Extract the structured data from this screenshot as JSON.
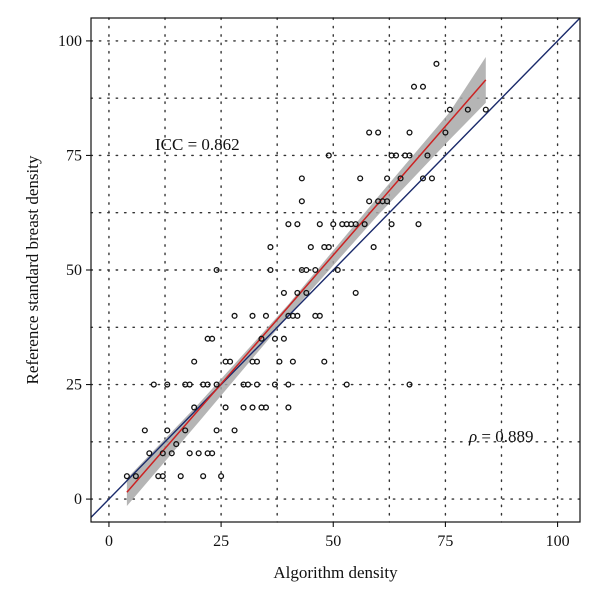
{
  "chart_data": {
    "type": "scatter",
    "title": "",
    "xlabel": "Algorithm density",
    "ylabel": "Reference standard breast density",
    "xlim": [
      -4,
      105
    ],
    "ylim": [
      -5,
      105
    ],
    "x_ticks": [
      0,
      25,
      50,
      75,
      100
    ],
    "y_ticks": [
      0,
      25,
      50,
      75,
      100
    ],
    "x_tick_labels": [
      "0",
      "25",
      "50",
      "75",
      "100"
    ],
    "y_tick_labels": [
      "0",
      "25",
      "50",
      "75",
      "100"
    ],
    "grid": "dotted, every 12.5 units",
    "annotations": {
      "icc": "ICC = 0.862",
      "rho_symbol": "ρ",
      "rho_value": " = 0.889"
    },
    "identity_line": {
      "color": "#1a2a6b",
      "from": [
        -4,
        -4
      ],
      "to": [
        105,
        105
      ]
    },
    "regression_line": {
      "color": "#cc2222",
      "from": [
        4,
        1.5
      ],
      "to": [
        84,
        91.5
      ]
    },
    "confidence_band": {
      "color": "#a8a8a8",
      "x": [
        4,
        20,
        40,
        60,
        76,
        84
      ],
      "lower": [
        -1.5,
        16.8,
        40.0,
        62.0,
        78.5,
        86.5
      ],
      "upper": [
        4.5,
        20.8,
        42.5,
        66.0,
        84.5,
        96.5
      ]
    },
    "points": [
      [
        4,
        5
      ],
      [
        6,
        5
      ],
      [
        8,
        15
      ],
      [
        9,
        10
      ],
      [
        10,
        25
      ],
      [
        11,
        5
      ],
      [
        12,
        5
      ],
      [
        12,
        10
      ],
      [
        13,
        15
      ],
      [
        13,
        25
      ],
      [
        14,
        10
      ],
      [
        15,
        12
      ],
      [
        16,
        5
      ],
      [
        17,
        15
      ],
      [
        17,
        25
      ],
      [
        18,
        25
      ],
      [
        18,
        10
      ],
      [
        19,
        20
      ],
      [
        19,
        30
      ],
      [
        20,
        10
      ],
      [
        21,
        5
      ],
      [
        21,
        25
      ],
      [
        22,
        25
      ],
      [
        22,
        10
      ],
      [
        22,
        35
      ],
      [
        23,
        35
      ],
      [
        23,
        10
      ],
      [
        24,
        15
      ],
      [
        24,
        25
      ],
      [
        24,
        50
      ],
      [
        25,
        5
      ],
      [
        26,
        20
      ],
      [
        26,
        30
      ],
      [
        27,
        30
      ],
      [
        28,
        15
      ],
      [
        28,
        40
      ],
      [
        30,
        25
      ],
      [
        30,
        20
      ],
      [
        31,
        25
      ],
      [
        32,
        40
      ],
      [
        32,
        30
      ],
      [
        32,
        20
      ],
      [
        33,
        30
      ],
      [
        33,
        25
      ],
      [
        34,
        20
      ],
      [
        34,
        35
      ],
      [
        35,
        20
      ],
      [
        35,
        40
      ],
      [
        36,
        50
      ],
      [
        36,
        55
      ],
      [
        37,
        35
      ],
      [
        37,
        25
      ],
      [
        38,
        30
      ],
      [
        39,
        35
      ],
      [
        39,
        45
      ],
      [
        40,
        40
      ],
      [
        40,
        20
      ],
      [
        40,
        25
      ],
      [
        40,
        60
      ],
      [
        41,
        30
      ],
      [
        41,
        40
      ],
      [
        42,
        40
      ],
      [
        42,
        45
      ],
      [
        42,
        60
      ],
      [
        43,
        50
      ],
      [
        43,
        65
      ],
      [
        43,
        70
      ],
      [
        44,
        50
      ],
      [
        44,
        45
      ],
      [
        45,
        55
      ],
      [
        46,
        50
      ],
      [
        46,
        40
      ],
      [
        47,
        60
      ],
      [
        47,
        40
      ],
      [
        48,
        55
      ],
      [
        48,
        30
      ],
      [
        49,
        55
      ],
      [
        49,
        75
      ],
      [
        50,
        60
      ],
      [
        51,
        50
      ],
      [
        52,
        60
      ],
      [
        53,
        60
      ],
      [
        53,
        25
      ],
      [
        54,
        60
      ],
      [
        55,
        45
      ],
      [
        55,
        60
      ],
      [
        56,
        70
      ],
      [
        57,
        60
      ],
      [
        58,
        65
      ],
      [
        58,
        80
      ],
      [
        59,
        55
      ],
      [
        60,
        65
      ],
      [
        60,
        80
      ],
      [
        61,
        65
      ],
      [
        62,
        70
      ],
      [
        62,
        65
      ],
      [
        63,
        60
      ],
      [
        63,
        75
      ],
      [
        64,
        75
      ],
      [
        65,
        70
      ],
      [
        66,
        75
      ],
      [
        67,
        80
      ],
      [
        67,
        75
      ],
      [
        67,
        25
      ],
      [
        68,
        90
      ],
      [
        69,
        60
      ],
      [
        70,
        70
      ],
      [
        70,
        90
      ],
      [
        71,
        75
      ],
      [
        72,
        70
      ],
      [
        73,
        95
      ],
      [
        75,
        80
      ],
      [
        76,
        85
      ],
      [
        80,
        85
      ],
      [
        84,
        85
      ]
    ]
  }
}
